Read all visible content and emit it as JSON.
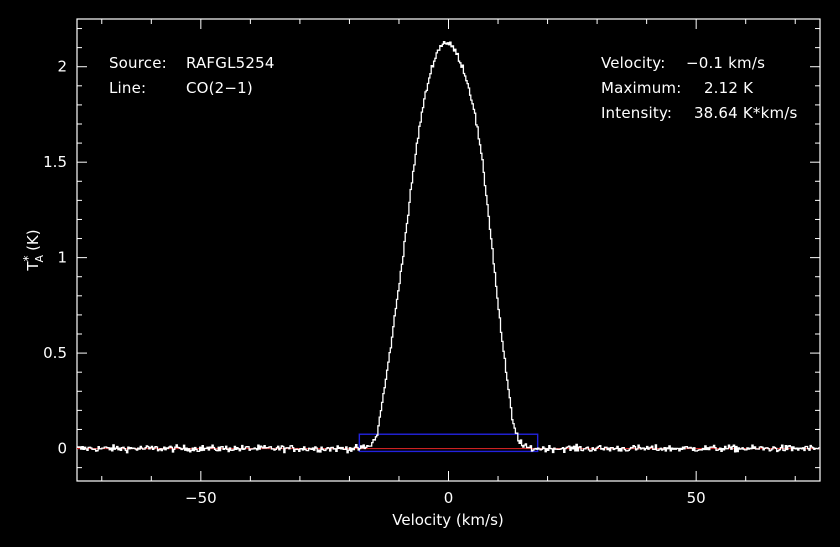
{
  "chart_data": {
    "type": "line",
    "title": "",
    "xlabel": "Velocity (km/s)",
    "ylabel_main": "T",
    "ylabel_sub": "A",
    "ylabel_sup": "*",
    "ylabel_unit": "(K)",
    "xlim": [
      -75,
      75
    ],
    "ylim": [
      -0.17,
      2.25
    ],
    "xticks": [
      -50,
      0,
      50
    ],
    "xtick_labels": [
      "−50",
      "0",
      "50"
    ],
    "yticks": [
      0,
      0.5,
      1,
      1.5,
      2
    ],
    "ytick_labels": [
      "0",
      "0.5",
      "1",
      "1.5",
      "2"
    ],
    "grid": false,
    "series": [
      {
        "color": "#ffffff",
        "style": "histogram",
        "x": [
          -75,
          -20,
          -18,
          -16,
          -14.5,
          -13,
          -12,
          -11,
          -10,
          -9,
          -8,
          -7,
          -6,
          -5,
          -4,
          -3,
          -2,
          -1,
          0,
          1,
          2,
          3,
          4,
          5,
          6,
          7,
          8,
          9,
          10,
          11,
          12,
          13,
          14,
          15,
          17,
          20,
          75
        ],
        "y": [
          0,
          0,
          0,
          0.01,
          0.06,
          0.3,
          0.47,
          0.66,
          0.85,
          1.05,
          1.26,
          1.47,
          1.66,
          1.81,
          1.93,
          2.03,
          2.09,
          2.13,
          2.12,
          2.1,
          2.05,
          1.99,
          1.9,
          1.8,
          1.65,
          1.47,
          1.25,
          1.01,
          0.76,
          0.53,
          0.33,
          0.13,
          0.06,
          0.01,
          0,
          0,
          0
        ],
        "noise_rms": 0.012
      }
    ],
    "baseline": {
      "y": 0,
      "color": "#cc2222"
    },
    "window": {
      "x": [
        -18,
        18
      ],
      "y": [
        -0.015,
        0.075
      ],
      "color": "#2222dd"
    }
  },
  "annotations": {
    "left": [
      {
        "label": "Source:",
        "value": "RAFGL5254"
      },
      {
        "label": "Line:",
        "value": "CO(2−1)"
      }
    ],
    "right": [
      {
        "label": "Velocity:",
        "value": "−0.1 km/s"
      },
      {
        "label": "Maximum:",
        "value": "2.12 K"
      },
      {
        "label": "Intensity:",
        "value": "38.64 K*km/s"
      }
    ]
  }
}
